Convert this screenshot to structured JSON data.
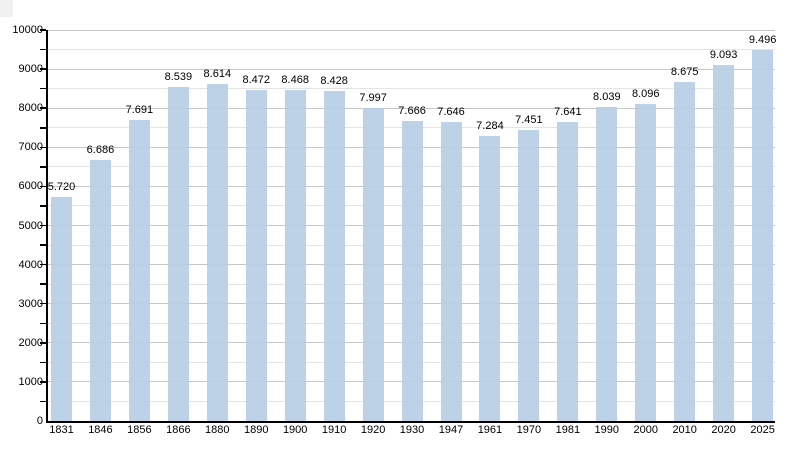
{
  "chart_data": {
    "type": "bar",
    "title": "",
    "xlabel": "",
    "ylabel": "",
    "categories": [
      "1831",
      "1846",
      "1856",
      "1866",
      "1880",
      "1890",
      "1900",
      "1910",
      "1920",
      "1930",
      "1947",
      "1961",
      "1970",
      "1981",
      "1990",
      "2000",
      "2010",
      "2020",
      "2025"
    ],
    "values": [
      5720,
      6686,
      7691,
      8539,
      8614,
      8472,
      8468,
      8428,
      7997,
      7666,
      7646,
      7284,
      7451,
      7641,
      8039,
      8096,
      8675,
      9093,
      9496
    ],
    "value_labels": [
      "5.720",
      "6.686",
      "7.691",
      "8.539",
      "8.614",
      "8.472",
      "8.468",
      "8.428",
      "7.997",
      "7.666",
      "7.646",
      "7.284",
      "7.451",
      "7.641",
      "8.039",
      "8.096",
      "8.675",
      "9.093",
      "9.496"
    ],
    "ylim": [
      0,
      10000
    ],
    "y_tick_labels": [
      "0",
      "1000",
      "2000",
      "3000",
      "4000",
      "5000",
      "6000",
      "7000",
      "8000",
      "9000",
      "10000"
    ],
    "y_major_step": 1000,
    "y_minor_step": 500,
    "grid": "on",
    "legend": "none",
    "colors": {
      "bar_fill": "#b8cde5",
      "axis": "#000000",
      "major_gridline": "#c6c6c6",
      "minor_gridline": "#e4e4e4",
      "text": "#000000",
      "background": "#ffffff"
    }
  }
}
